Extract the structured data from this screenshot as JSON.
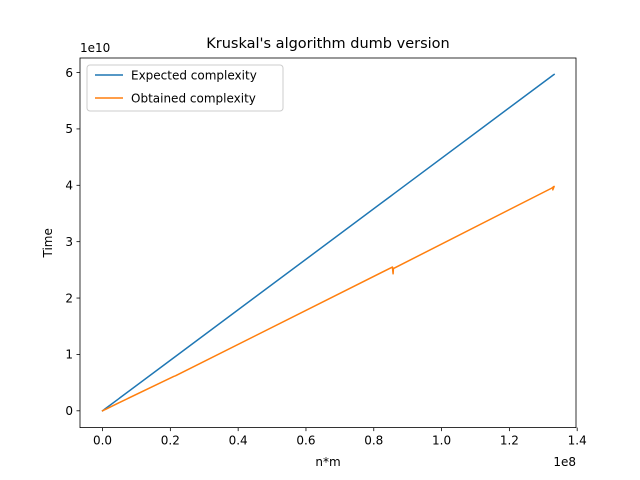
{
  "chart_data": {
    "type": "line",
    "title": "Kruskal's algorithm dumb version",
    "xlabel": "n*m",
    "ylabel": "Time",
    "x_scale_text": "1e8",
    "y_scale_text": "1e10",
    "xlim": [
      -6650000,
      139650000
    ],
    "ylim": [
      -2980000000,
      62580000000
    ],
    "xticks": [
      0,
      20000000,
      40000000,
      60000000,
      80000000,
      100000000,
      120000000,
      140000000
    ],
    "xtick_labels": [
      "0.0",
      "0.2",
      "0.4",
      "0.6",
      "0.8",
      "1.0",
      "1.2",
      "1.4"
    ],
    "yticks": [
      0,
      10000000000,
      20000000000,
      30000000000,
      40000000000,
      50000000000,
      60000000000
    ],
    "ytick_labels": [
      "0",
      "1",
      "2",
      "3",
      "4",
      "5",
      "6"
    ],
    "grid": false,
    "legend_position": "upper-left",
    "series": [
      {
        "name": "Expected complexity",
        "color": "#1f77b4",
        "x": [
          0,
          100000,
          200000,
          500000,
          1000000,
          4800000,
          5200000,
          21000000,
          21500000,
          85000000,
          86000000,
          133000000,
          133200000
        ],
        "y": [
          0,
          45000000,
          90000000,
          224000000,
          448000000,
          2150000000,
          2330000000,
          9410000000,
          9630000000,
          38080000000,
          38530000000,
          59590000000,
          59670000000
        ]
      },
      {
        "name": "Obtained complexity",
        "color": "#ff7f0e",
        "x": [
          0,
          200000,
          500000,
          1000000,
          4800000,
          5200000,
          21000000,
          21500000,
          85500000,
          85700000,
          85800000,
          85600000,
          86000000,
          132500000,
          133200000,
          132800000,
          133100000
        ],
        "y": [
          0,
          60000000,
          150000000,
          290000000,
          1420000000,
          1530000000,
          6100000000,
          6200000000,
          25500000000,
          24300000000,
          25300000000,
          25100000000,
          25300000000,
          39500000000,
          39800000000,
          39200000000,
          39700000000
        ]
      }
    ]
  }
}
